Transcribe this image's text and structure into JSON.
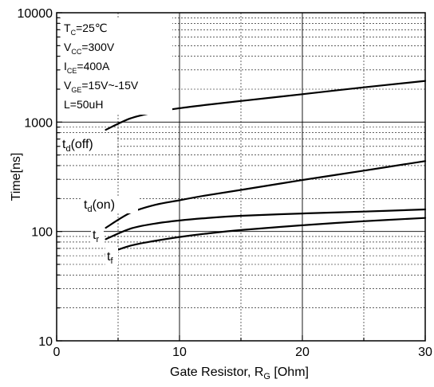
{
  "chart_data": {
    "type": "line",
    "xlabel": {
      "main": "Gate Resistor, R",
      "sub": "G",
      "unit": " [Ohm]"
    },
    "ylabel": "Time[ns]",
    "xlim": [
      0,
      30
    ],
    "ylim": [
      10,
      10000
    ],
    "yscale": "log",
    "grid": true,
    "x_ticks": [
      0,
      10,
      20,
      30
    ],
    "x_tick_labels": [
      "0",
      "10",
      "20",
      "30"
    ],
    "y_ticks": [
      10,
      100,
      1000,
      10000
    ],
    "y_tick_labels": [
      "10",
      "100",
      "1000",
      "10000"
    ],
    "conditions": [
      {
        "main": "T",
        "sub": "C",
        "rest": "=25℃"
      },
      {
        "main": "V",
        "sub": "CC",
        "rest": "=300V"
      },
      {
        "main": "I",
        "sub": "CE",
        "rest": "=400A"
      },
      {
        "main": "V",
        "sub": "GE",
        "rest": "=15V~-15V"
      },
      {
        "main": "L=50uH",
        "sub": "",
        "rest": ""
      }
    ],
    "series": [
      {
        "name": "td(off)",
        "label": {
          "main": "t",
          "sub": "d",
          "rest": "(off)"
        },
        "x": [
          4,
          6,
          8,
          10,
          12,
          15,
          20,
          25,
          30
        ],
        "y": [
          850,
          1080,
          1230,
          1340,
          1430,
          1560,
          1800,
          2080,
          2380
        ]
      },
      {
        "name": "td(on)",
        "label": {
          "main": "t",
          "sub": "d",
          "rest": "(on)"
        },
        "x": [
          4,
          6,
          8,
          10,
          12,
          15,
          20,
          25,
          30
        ],
        "y": [
          108,
          148,
          175,
          193,
          212,
          240,
          295,
          360,
          440
        ]
      },
      {
        "name": "tr",
        "label": {
          "main": "t",
          "sub": "r",
          "rest": ""
        },
        "x": [
          4,
          6,
          8,
          10,
          12,
          15,
          20,
          25,
          30
        ],
        "y": [
          85,
          106,
          118,
          126,
          132,
          139,
          146,
          152,
          159
        ]
      },
      {
        "name": "tf",
        "label": {
          "main": "t",
          "sub": "f",
          "rest": ""
        },
        "x": [
          4,
          6,
          8,
          10,
          12,
          15,
          20,
          25,
          30
        ],
        "y": [
          62,
          74,
          82,
          89,
          95,
          103,
          114,
          124,
          133
        ]
      }
    ]
  }
}
